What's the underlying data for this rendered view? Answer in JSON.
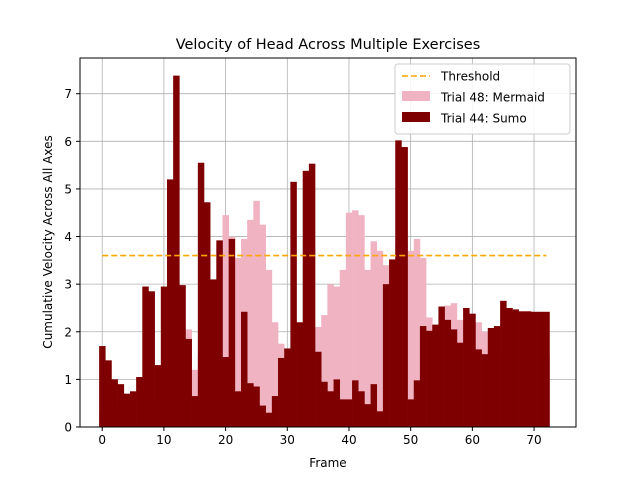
{
  "chart_data": {
    "type": "bar",
    "title": "Velocity of Head Across Multiple Exercises",
    "xlabel": "Frame",
    "ylabel": "Cumulative Velocity Across All Axes",
    "xlim": [
      -3.6,
      76.8
    ],
    "ylim": [
      0,
      7.75
    ],
    "xticks": [
      0,
      10,
      20,
      30,
      40,
      50,
      60,
      70
    ],
    "yticks": [
      0,
      1,
      2,
      3,
      4,
      5,
      6,
      7
    ],
    "grid": true,
    "legend_position": "top-right",
    "x": [
      0,
      1,
      2,
      3,
      4,
      5,
      6,
      7,
      8,
      9,
      10,
      11,
      12,
      13,
      14,
      15,
      16,
      17,
      18,
      19,
      20,
      21,
      22,
      23,
      24,
      25,
      26,
      27,
      28,
      29,
      30,
      31,
      32,
      33,
      34,
      35,
      36,
      37,
      38,
      39,
      40,
      41,
      42,
      43,
      44,
      45,
      46,
      47,
      48,
      49,
      50,
      51,
      52,
      53,
      54,
      55,
      56,
      57,
      58,
      59,
      60,
      61,
      62,
      63,
      64,
      65,
      66,
      67,
      68,
      69,
      70,
      71,
      72
    ],
    "series": [
      {
        "name": "Trial 48: Mermaid",
        "color": "#f0b3c2",
        "values": [
          0.3,
          0.4,
          0.5,
          0.4,
          0.5,
          0.5,
          0.5,
          0.5,
          0.6,
          0.6,
          0.7,
          0.8,
          0.9,
          1.5,
          2.05,
          1.2,
          1.5,
          1.8,
          3.05,
          3.8,
          4.45,
          4.0,
          3.55,
          3.95,
          4.35,
          4.75,
          4.25,
          3.3,
          2.2,
          1.75,
          1.55,
          1.6,
          1.75,
          2.2,
          1.75,
          2.1,
          2.35,
          3.0,
          2.95,
          3.3,
          4.5,
          4.55,
          4.45,
          3.3,
          3.9,
          3.7,
          3.4,
          3.5,
          3.85,
          3.85,
          3.7,
          3.95,
          3.55,
          2.3,
          2.15,
          2.3,
          2.55,
          2.6,
          2.25,
          2.15,
          2.05,
          2.2,
          2.0,
          1.6,
          1.5,
          1.55,
          1.6,
          1.65,
          1.6,
          1.5,
          1.5,
          1.55,
          1.5
        ]
      },
      {
        "name": "Trial 44: Sumo",
        "color": "#7f0000",
        "values": [
          1.7,
          1.4,
          1.0,
          0.9,
          0.7,
          0.75,
          1.05,
          2.95,
          2.85,
          1.3,
          2.95,
          5.2,
          7.38,
          2.98,
          1.85,
          0.65,
          5.55,
          4.72,
          3.1,
          3.92,
          1.47,
          3.95,
          0.75,
          2.42,
          0.92,
          0.85,
          0.45,
          0.3,
          0.65,
          1.45,
          1.65,
          5.15,
          2.2,
          5.38,
          5.53,
          1.58,
          0.95,
          0.75,
          1.0,
          0.58,
          0.58,
          0.98,
          0.75,
          0.48,
          0.9,
          0.33,
          3.0,
          3.52,
          6.02,
          5.88,
          0.58,
          0.98,
          2.12,
          2.02,
          2.15,
          2.53,
          2.25,
          2.05,
          1.77,
          2.5,
          2.38,
          1.63,
          1.53,
          2.08,
          2.12,
          2.65,
          2.5,
          2.47,
          2.43,
          2.43,
          2.42,
          2.42,
          2.42
        ]
      }
    ],
    "threshold": {
      "name": "Threshold",
      "value": 3.6,
      "x_range": [
        0,
        72
      ],
      "color": "#ffa500"
    }
  }
}
